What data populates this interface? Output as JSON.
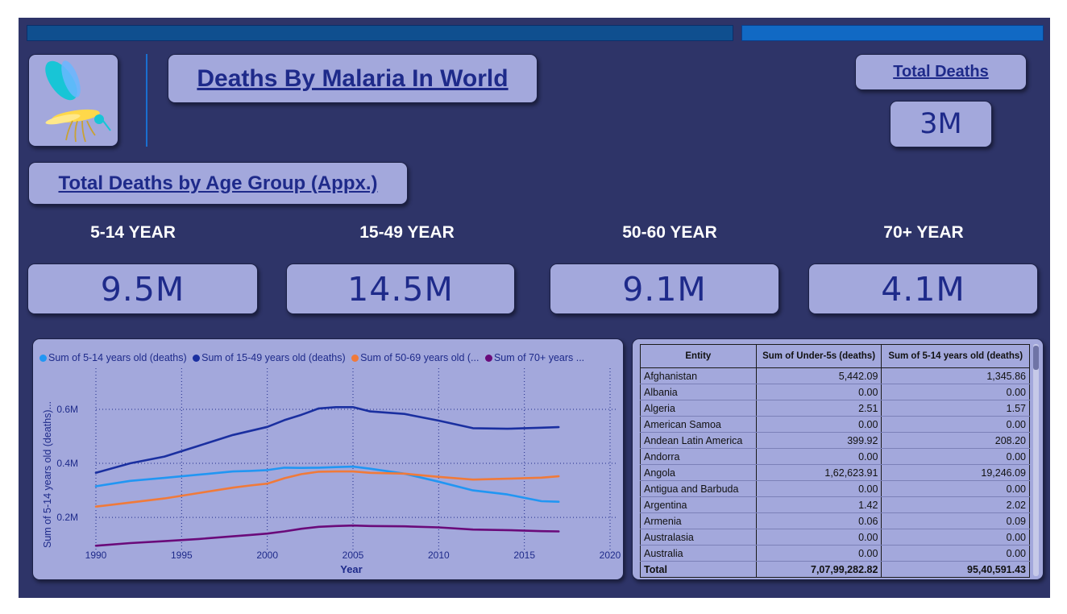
{
  "header": {
    "title": "Deaths By Malaria In World",
    "total_deaths_label": "Total Deaths",
    "total_deaths_value": "3M"
  },
  "age_group": {
    "heading": "Total Deaths by Age Group (Appx.)",
    "groups": [
      {
        "label": "5-14 YEAR",
        "value": "9.5M"
      },
      {
        "label": "15-49 YEAR",
        "value": "14.5M"
      },
      {
        "label": "50-60 YEAR",
        "value": "9.1M"
      },
      {
        "label": "70+ YEAR",
        "value": "4.1M"
      }
    ]
  },
  "colors": {
    "background": "#2e3468",
    "card": "#a3a8dc",
    "accent_text": "#1e2a8a",
    "series_5_14": "#2196f3",
    "series_15_49": "#1a2fa0",
    "series_50_69": "#f07a3a",
    "series_70_plus": "#6a0a7a"
  },
  "chart_data": {
    "type": "line",
    "xlabel": "Year",
    "ylabel": "Sum of 5-14 years old (deaths)...",
    "x_ticks": [
      "1990",
      "1995",
      "2000",
      "2005",
      "2010",
      "2015",
      "2020"
    ],
    "y_ticks": [
      "0.2M",
      "0.4M",
      "0.6M"
    ],
    "xlim": [
      1990,
      2020
    ],
    "ylim": [
      0.09,
      0.74
    ],
    "grid": true,
    "legend_position": "top",
    "x": [
      1990,
      1992,
      1994,
      1996,
      1998,
      1999,
      2000,
      2001,
      2002,
      2003,
      2004,
      2005,
      2006,
      2008,
      2010,
      2012,
      2014,
      2016,
      2017
    ],
    "series": [
      {
        "name": "Sum of 5-14 years old (deaths)",
        "color": "#2196f3",
        "values": [
          0.315,
          0.335,
          0.346,
          0.358,
          0.37,
          0.372,
          0.375,
          0.384,
          0.383,
          0.384,
          0.386,
          0.388,
          0.38,
          0.362,
          0.332,
          0.3,
          0.285,
          0.26,
          0.258
        ]
      },
      {
        "name": "Sum of 15-49 years old (deaths)",
        "color": "#1a2fa0",
        "values": [
          0.365,
          0.4,
          0.425,
          0.465,
          0.505,
          0.52,
          0.535,
          0.56,
          0.58,
          0.603,
          0.608,
          0.608,
          0.592,
          0.583,
          0.558,
          0.53,
          0.528,
          0.532,
          0.534
        ]
      },
      {
        "name": "Sum of 50-69 years old (deaths)",
        "color": "#f07a3a",
        "values": [
          0.24,
          0.255,
          0.27,
          0.29,
          0.31,
          0.318,
          0.325,
          0.345,
          0.36,
          0.369,
          0.37,
          0.37,
          0.365,
          0.362,
          0.35,
          0.34,
          0.343,
          0.347,
          0.352
        ]
      },
      {
        "name": "Sum of 70+ years old (deaths)",
        "color": "#6a0a7a",
        "values": [
          0.095,
          0.105,
          0.112,
          0.12,
          0.13,
          0.135,
          0.14,
          0.148,
          0.158,
          0.165,
          0.168,
          0.17,
          0.168,
          0.167,
          0.163,
          0.155,
          0.153,
          0.149,
          0.148
        ]
      }
    ]
  },
  "legend": {
    "items": [
      {
        "label": "Sum of 5-14 years old (deaths)",
        "color": "#2196f3"
      },
      {
        "label": "Sum of 15-49 years old (deaths)",
        "color": "#1a2fa0"
      },
      {
        "label": "Sum of 50-69 years old (...",
        "color": "#f07a3a"
      },
      {
        "label": "Sum of 70+ years ...",
        "color": "#6a0a7a"
      }
    ]
  },
  "table": {
    "columns": [
      "Entity",
      "Sum of Under-5s (deaths)",
      "Sum of 5-14 years old (deaths)"
    ],
    "rows": [
      [
        "Afghanistan",
        "5,442.09",
        "1,345.86"
      ],
      [
        "Albania",
        "0.00",
        "0.00"
      ],
      [
        "Algeria",
        "2.51",
        "1.57"
      ],
      [
        "American Samoa",
        "0.00",
        "0.00"
      ],
      [
        "Andean Latin America",
        "399.92",
        "208.20"
      ],
      [
        "Andorra",
        "0.00",
        "0.00"
      ],
      [
        "Angola",
        "1,62,623.91",
        "19,246.09"
      ],
      [
        "Antigua and Barbuda",
        "0.00",
        "0.00"
      ],
      [
        "Argentina",
        "1.42",
        "2.02"
      ],
      [
        "Armenia",
        "0.06",
        "0.09"
      ],
      [
        "Australasia",
        "0.00",
        "0.00"
      ],
      [
        "Australia",
        "0.00",
        "0.00"
      ]
    ],
    "total": [
      "Total",
      "7,07,99,282.82",
      "95,40,591.43"
    ]
  },
  "icons": {
    "logo": "mosquito-icon"
  }
}
